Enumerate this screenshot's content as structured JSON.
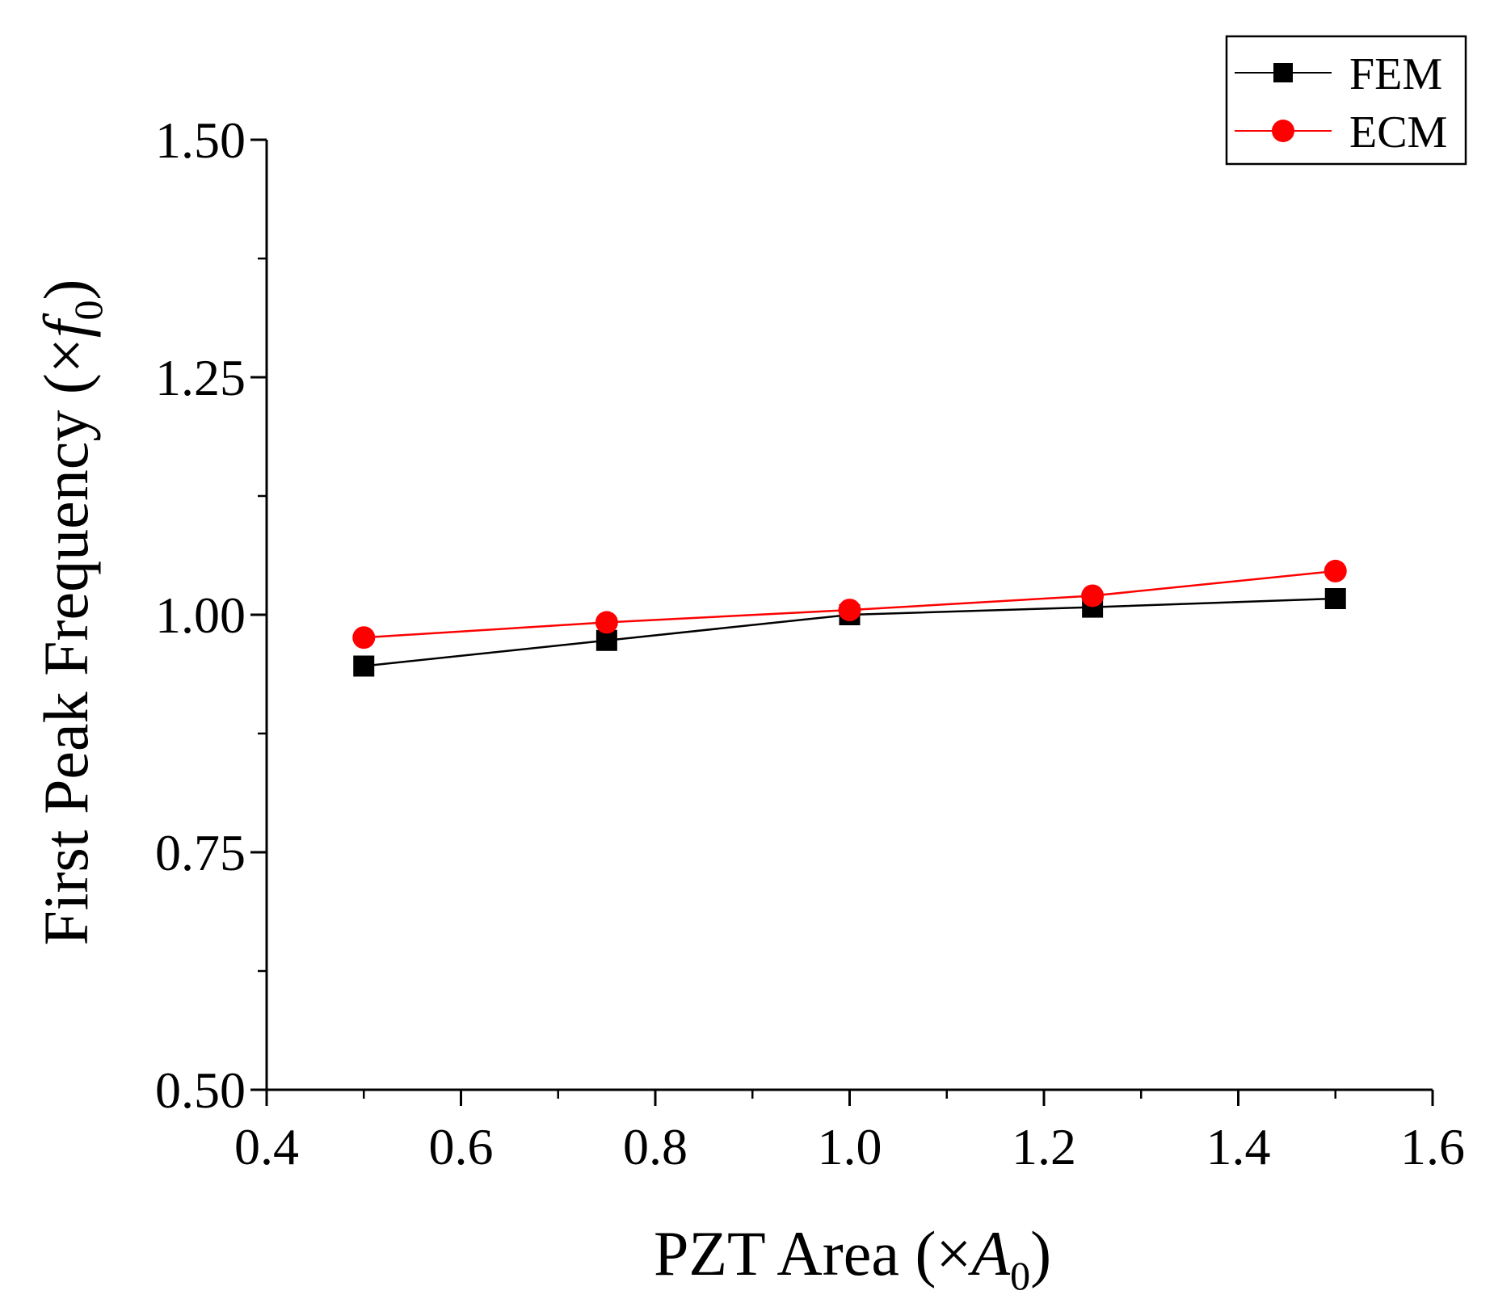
{
  "chart_data": {
    "type": "line",
    "title": "",
    "xlabel": {
      "prefix": "PZT Area (",
      "symbol": "×",
      "var": "A",
      "sub": "0",
      "suffix": ")"
    },
    "ylabel": {
      "prefix": "First Peak Frequency (",
      "symbol": "×",
      "var": "f",
      "sub": "0",
      "suffix": ")"
    },
    "xlim": [
      0.4,
      1.6
    ],
    "ylim": [
      0.5,
      1.5
    ],
    "x_ticks": [
      "0.4",
      "0.6",
      "0.8",
      "1.0",
      "1.2",
      "1.4",
      "1.6"
    ],
    "x_tick_values": [
      0.4,
      0.6,
      0.8,
      1.0,
      1.2,
      1.4,
      1.6
    ],
    "x_minor_ticks": [
      0.5,
      0.7,
      0.9,
      1.1,
      1.3,
      1.5
    ],
    "y_ticks": [
      "0.50",
      "0.75",
      "1.00",
      "1.25",
      "1.50"
    ],
    "y_tick_values": [
      0.5,
      0.75,
      1.0,
      1.25,
      1.5
    ],
    "y_minor_ticks": [
      0.625,
      0.875,
      1.125,
      1.375
    ],
    "grid": false,
    "legend_position": "top-right",
    "series": [
      {
        "name": "FEM",
        "color": "#000000",
        "marker": "square",
        "x": [
          0.5,
          0.75,
          1.0,
          1.25,
          1.5
        ],
        "y": [
          0.946,
          0.973,
          1.0,
          1.008,
          1.017
        ]
      },
      {
        "name": "ECM",
        "color": "#ff0000",
        "marker": "circle",
        "x": [
          0.5,
          0.75,
          1.0,
          1.25,
          1.5
        ],
        "y": [
          0.976,
          0.992,
          1.005,
          1.02,
          1.046
        ]
      }
    ]
  }
}
